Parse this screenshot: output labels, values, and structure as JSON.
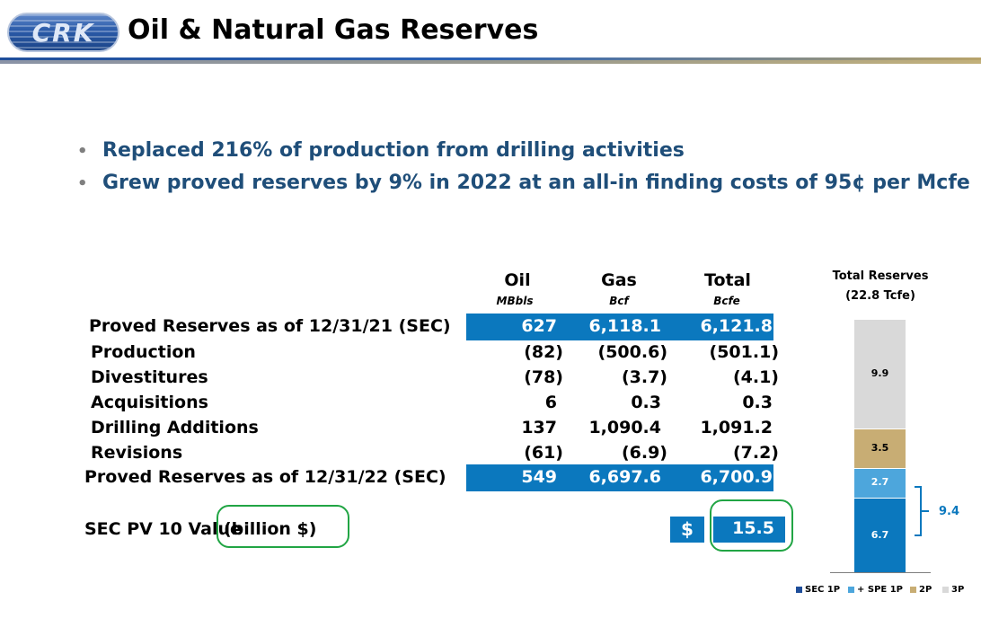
{
  "header": {
    "logo_text": "CRK",
    "title": "Oil & Natural Gas Reserves"
  },
  "bullets": [
    "Replaced 216% of production from drilling activities",
    "Grew proved reserves by 9% in 2022 at an all-in finding costs of 95¢ per Mcfe"
  ],
  "table": {
    "columns": [
      {
        "name": "Oil",
        "unit": "MBbls"
      },
      {
        "name": "Gas",
        "unit": "Bcf"
      },
      {
        "name": "Total",
        "unit": "Bcfe"
      }
    ],
    "rows": [
      {
        "label": "Proved Reserves as of 12/31/21 (SEC)",
        "oil": "627",
        "gas": "6,118.1",
        "total": "6,121.8"
      },
      {
        "label": "Production",
        "oil": "(82)",
        "gas": "(500.6)",
        "total": "(501.1)"
      },
      {
        "label": "Divestitures",
        "oil": "(78)",
        "gas": "(3.7)",
        "total": "(4.1)"
      },
      {
        "label": "Acquisitions",
        "oil": "6",
        "gas": "0.3",
        "total": "0.3"
      },
      {
        "label": "Drilling Additions",
        "oil": "137",
        "gas": "1,090.4",
        "total": "1,091.2"
      },
      {
        "label": "Revisions",
        "oil": "(61)",
        "gas": "(6.9)",
        "total": "(7.2)"
      },
      {
        "label": "Proved Reserves as of 12/31/22 (SEC)",
        "oil": "549",
        "gas": "6,697.6",
        "total": "6,700.9"
      }
    ],
    "pv10": {
      "label": "SEC PV 10 Value",
      "unit_label": "(billion $)",
      "currency": "$",
      "value": "15.5"
    }
  },
  "colors": {
    "band_blue": "#0b78be",
    "highlight_green": "#21a544",
    "title_blue": "#1f4e79"
  },
  "chart_data": {
    "type": "bar",
    "title": "Total Reserves",
    "subtitle": "(22.8 Tcfe)",
    "categories": [
      ""
    ],
    "series": [
      {
        "name": "SEC 1P",
        "values": [
          6.7
        ],
        "color": "#0b78be"
      },
      {
        "name": "+ SPE 1P",
        "values": [
          2.7
        ],
        "color": "#4da6dc"
      },
      {
        "name": "2P",
        "values": [
          3.5
        ],
        "color": "#c8ad74"
      },
      {
        "name": "3P",
        "values": [
          9.9
        ],
        "color": "#d9d9d9"
      }
    ],
    "stacked": true,
    "bracket_label": "9.4",
    "legend_position": "bottom"
  }
}
